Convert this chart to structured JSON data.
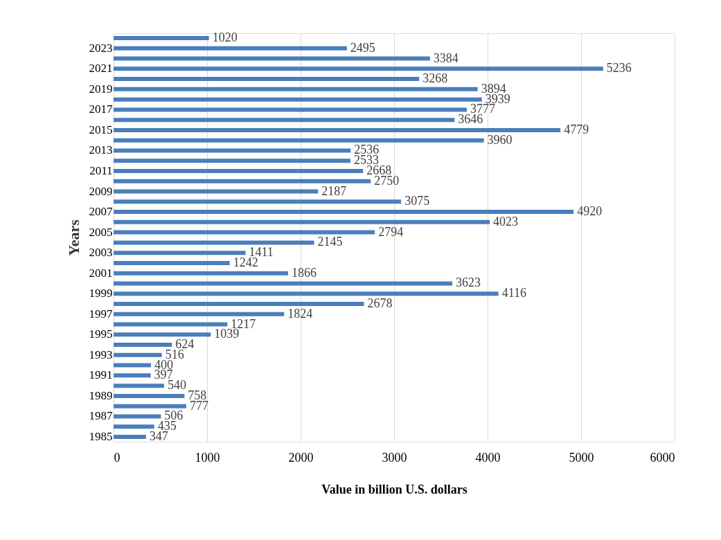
{
  "chart_data": {
    "type": "bar",
    "orientation": "horizontal",
    "xlabel": "Value in billion  U.S. dollars",
    "ylabel": "Years",
    "categories": [
      null,
      "2023",
      null,
      "2021",
      null,
      "2019",
      null,
      "2017",
      null,
      "2015",
      null,
      "2013",
      null,
      "2011",
      null,
      "2009",
      null,
      "2007",
      null,
      "2005",
      null,
      "2003",
      null,
      "2001",
      null,
      "1999",
      null,
      "1997",
      null,
      "1995",
      null,
      "1993",
      null,
      "1991",
      null,
      "1989",
      null,
      "1987",
      null,
      "1985"
    ],
    "values": [
      1020,
      2495,
      3384,
      5236,
      3268,
      3894,
      3939,
      3777,
      3646,
      4779,
      3960,
      2536,
      2533,
      2668,
      2750,
      2187,
      3075,
      4920,
      4023,
      2794,
      2145,
      1411,
      1242,
      1866,
      3623,
      4116,
      2678,
      1824,
      1217,
      1039,
      624,
      516,
      400,
      397,
      540,
      758,
      777,
      506,
      435,
      347
    ],
    "color": "#4a7ebb",
    "xlim": [
      0,
      6000
    ],
    "xticks": [
      0,
      1000,
      2000,
      3000,
      4000,
      5000,
      6000
    ],
    "grid": "x",
    "data_labels": true
  }
}
